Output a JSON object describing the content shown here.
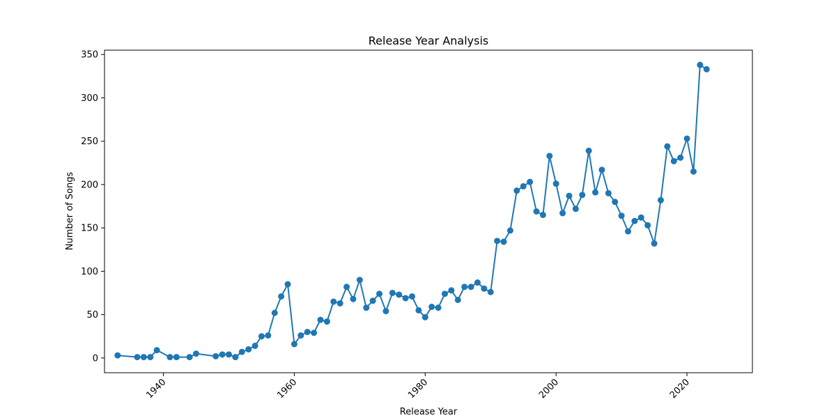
{
  "chart_data": {
    "type": "line",
    "title": "Release Year Analysis",
    "xlabel": "Release Year",
    "ylabel": "Number of Songs",
    "xlim": [
      1931,
      2030
    ],
    "ylim": [
      -17,
      355
    ],
    "xticks": [
      1940,
      1960,
      1980,
      2000,
      2020
    ],
    "yticks": [
      0,
      50,
      100,
      150,
      200,
      250,
      300,
      350
    ],
    "grid": false,
    "color": "#1f77b4",
    "series": [
      {
        "x": [
          1933,
          1936,
          1937,
          1938,
          1939,
          1941,
          1942,
          1944,
          1945,
          1948,
          1949,
          1950,
          1951,
          1952,
          1953,
          1954,
          1955,
          1956,
          1957,
          1958,
          1959,
          1960,
          1961,
          1962,
          1963,
          1964,
          1965,
          1966,
          1967,
          1968,
          1969,
          1970,
          1971,
          1972,
          1973,
          1974,
          1975,
          1976,
          1977,
          1978,
          1979,
          1980,
          1981,
          1982,
          1983,
          1984,
          1985,
          1986,
          1987,
          1988,
          1989,
          1990,
          1991,
          1992,
          1993,
          1994,
          1995,
          1996,
          1997,
          1998,
          1999,
          2000,
          2001,
          2002,
          2003,
          2004,
          2005,
          2006,
          2007,
          2008,
          2009,
          2010,
          2011,
          2012,
          2013,
          2014,
          2015,
          2016,
          2017,
          2018,
          2019,
          2020,
          2021,
          2022,
          2023
        ],
        "values": [
          3,
          1,
          1,
          1,
          9,
          1,
          1,
          1,
          5,
          2,
          4,
          4,
          1,
          7,
          10,
          14,
          25,
          26,
          52,
          71,
          85,
          16,
          26,
          30,
          29,
          44,
          42,
          65,
          63,
          82,
          68,
          90,
          58,
          66,
          74,
          54,
          75,
          73,
          69,
          71,
          55,
          47,
          59,
          58,
          74,
          78,
          67,
          82,
          82,
          87,
          80,
          76,
          135,
          134,
          147,
          193,
          198,
          203,
          169,
          165,
          233,
          201,
          167,
          187,
          172,
          188,
          239,
          191,
          217,
          190,
          180,
          164,
          146,
          158,
          162,
          153,
          132,
          182,
          244,
          227,
          231,
          253,
          215,
          338,
          333
        ]
      }
    ]
  }
}
